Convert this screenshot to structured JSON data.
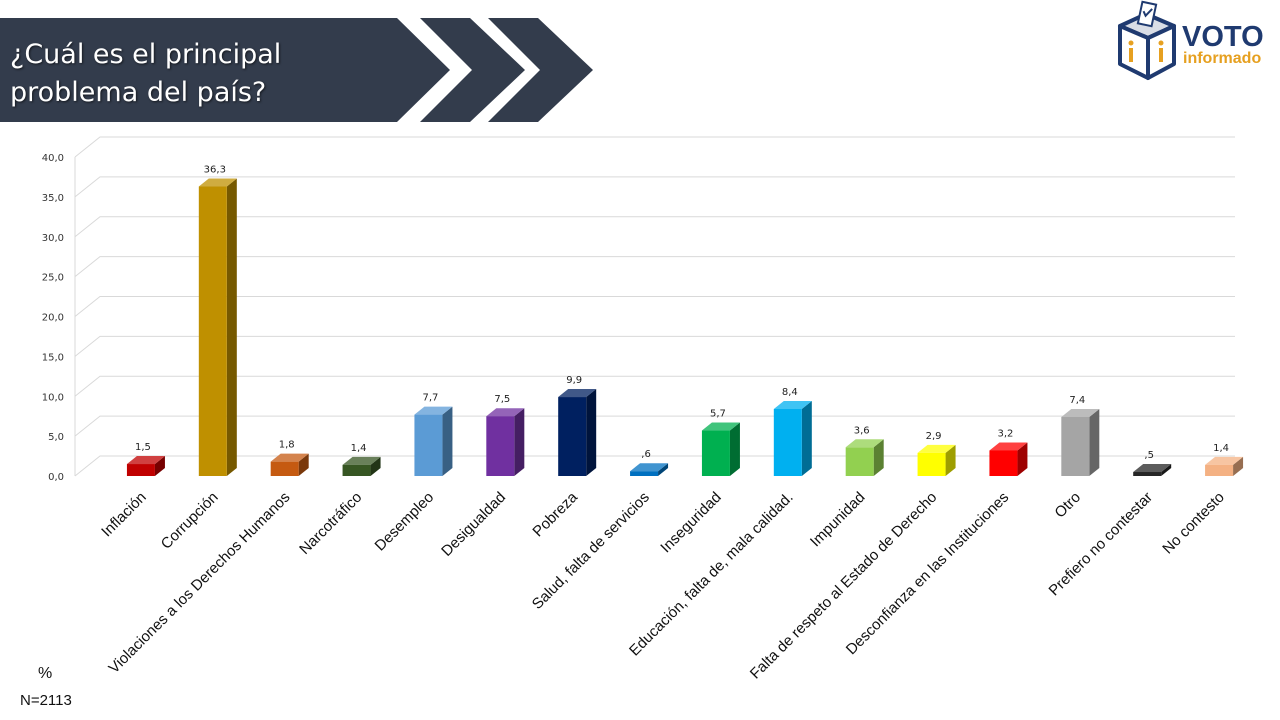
{
  "header": {
    "title_line1": "¿Cuál es el principal",
    "title_line2": "problema del país?",
    "banner_color": "#333c4c"
  },
  "logo": {
    "text_top": "VOTO",
    "text_bottom": "informado",
    "icon": "ballot-box-icon",
    "colors": {
      "navy": "#1f3a70",
      "orange": "#e6a020"
    }
  },
  "footnote": {
    "unit": "%",
    "sample": "N=2113"
  },
  "chart_data": {
    "type": "bar",
    "style": "3d-column",
    "categories": [
      "Inflación",
      "Corrupción",
      "Violaciones a los Derechos Humanos",
      "Narcotráfico",
      "Desempleo",
      "Desigualdad",
      "Pobreza",
      "Salud, falta de servicios",
      "Inseguridad",
      "Educación, falta de, mala calidad.",
      "Impunidad",
      "Falta de respeto al Estado de Derecho",
      "Desconfianza en las Instituciones",
      "Otro",
      "Prefiero no contestar",
      "No contesto"
    ],
    "values": [
      1.5,
      36.3,
      1.8,
      1.4,
      7.7,
      7.5,
      9.9,
      0.6,
      5.7,
      8.4,
      3.6,
      2.9,
      3.2,
      7.4,
      0.5,
      1.4
    ],
    "data_labels": [
      "1,5",
      "36,3",
      "1,8",
      "1,4",
      "7,7",
      "7,5",
      "9,9",
      ",6",
      "5,7",
      "8,4",
      "3,6",
      "2,9",
      "3,2",
      "7,4",
      ",5",
      "1,4"
    ],
    "colors": [
      "#c00000",
      "#bf9000",
      "#c55a11",
      "#375623",
      "#5b9bd5",
      "#7030a0",
      "#002060",
      "#0070c0",
      "#00b050",
      "#00b0f0",
      "#92d050",
      "#ffff00",
      "#ff0000",
      "#a5a5a5",
      "#262626",
      "#f4b183"
    ],
    "yticks": [
      "0,0",
      "5,0",
      "10,0",
      "15,0",
      "20,0",
      "25,0",
      "30,0",
      "35,0",
      "40,0"
    ],
    "ylim": [
      0,
      40
    ],
    "grid": true,
    "legend": "none"
  }
}
